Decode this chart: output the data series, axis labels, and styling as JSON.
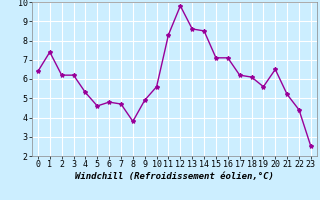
{
  "x": [
    0,
    1,
    2,
    3,
    4,
    5,
    6,
    7,
    8,
    9,
    10,
    11,
    12,
    13,
    14,
    15,
    16,
    17,
    18,
    19,
    20,
    21,
    22,
    23
  ],
  "y": [
    6.4,
    7.4,
    6.2,
    6.2,
    5.3,
    4.6,
    4.8,
    4.7,
    3.8,
    4.9,
    5.6,
    8.3,
    9.8,
    8.6,
    8.5,
    7.1,
    7.1,
    6.2,
    6.1,
    5.6,
    6.5,
    5.2,
    4.4,
    2.5
  ],
  "line_color": "#990099",
  "marker": "*",
  "marker_size": 3,
  "bg_color": "#cceeff",
  "grid_color": "#ffffff",
  "xlabel": "Windchill (Refroidissement éolien,°C)",
  "xlim": [
    -0.5,
    23.5
  ],
  "ylim": [
    2,
    10
  ],
  "xticks": [
    0,
    1,
    2,
    3,
    4,
    5,
    6,
    7,
    8,
    9,
    10,
    11,
    12,
    13,
    14,
    15,
    16,
    17,
    18,
    19,
    20,
    21,
    22,
    23
  ],
  "yticks": [
    2,
    3,
    4,
    5,
    6,
    7,
    8,
    9,
    10
  ],
  "xlabel_fontsize": 6.5,
  "tick_fontsize": 6.0,
  "line_width": 1.0
}
